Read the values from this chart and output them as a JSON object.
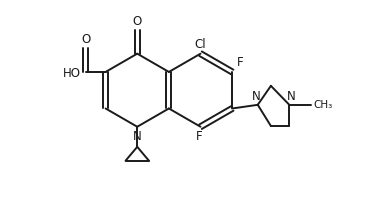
{
  "bg_color": "#ffffff",
  "line_color": "#1a1a1a",
  "text_color": "#1a1a1a",
  "line_width": 1.4,
  "font_size": 8.5,
  "figsize": [
    3.67,
    2.06
  ],
  "dpi": 100,
  "xlim": [
    0,
    10
  ],
  "ylim": [
    0,
    5.6
  ]
}
